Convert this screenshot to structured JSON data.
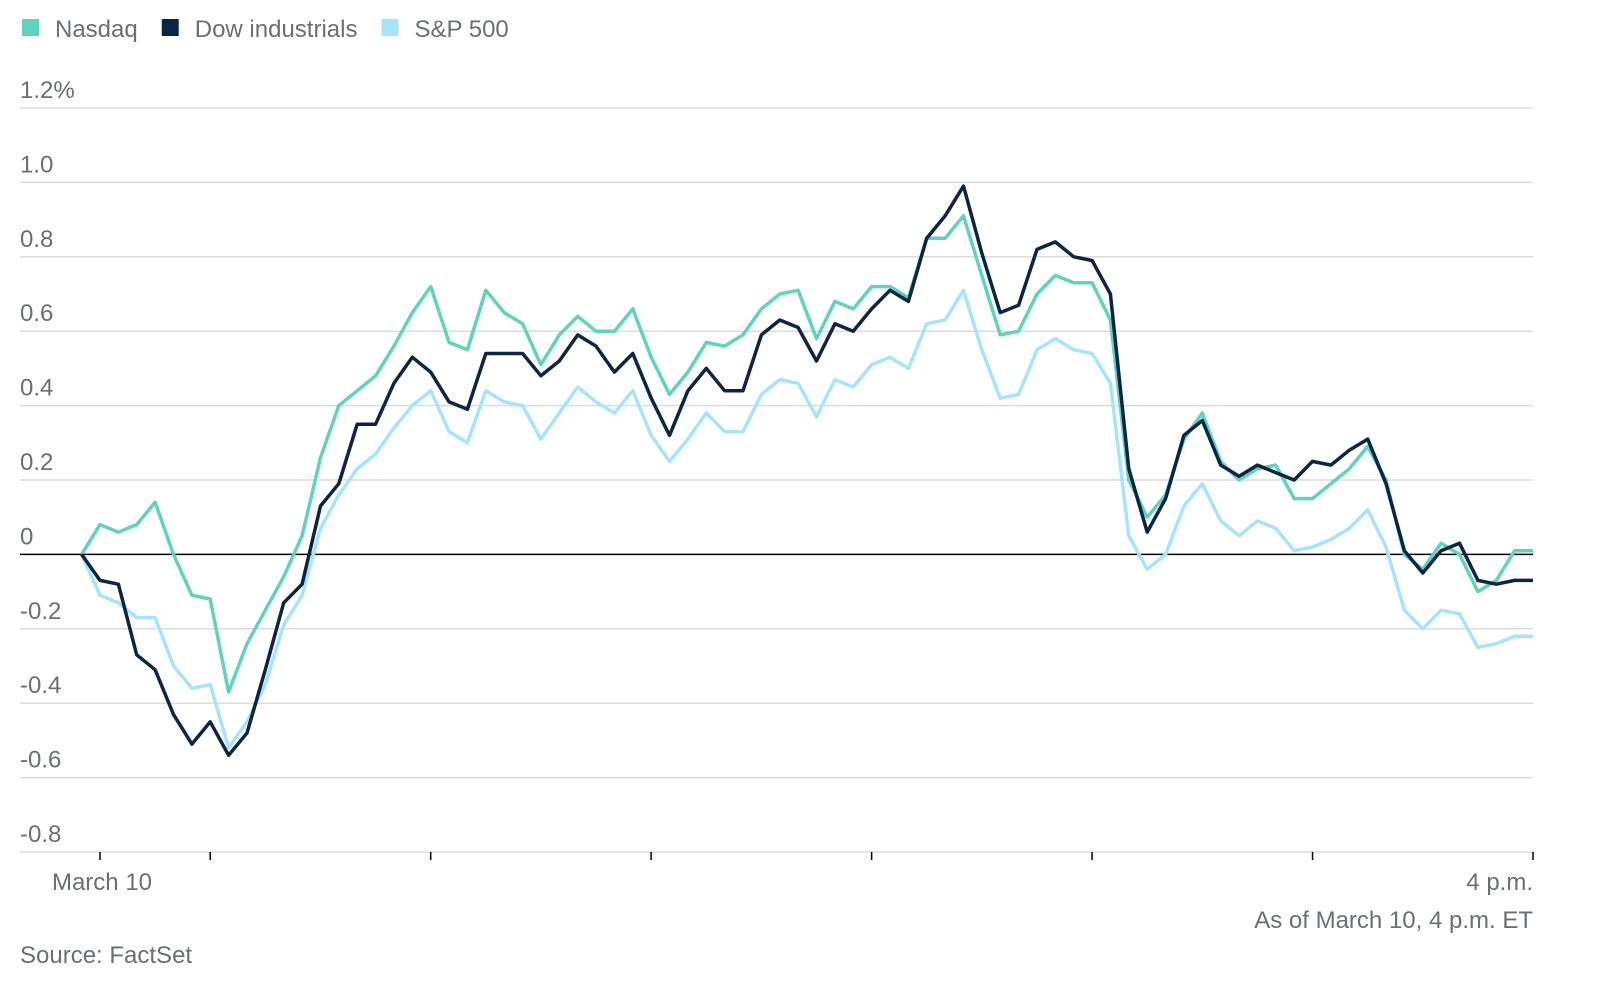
{
  "chart_data": {
    "type": "line",
    "x": [
      -5,
      0,
      5,
      10,
      15,
      20,
      25,
      30,
      35,
      40,
      45,
      50,
      55,
      60,
      65,
      70,
      75,
      80,
      85,
      90,
      95,
      100,
      105,
      110,
      115,
      120,
      125,
      130,
      135,
      140,
      145,
      150,
      155,
      160,
      165,
      170,
      175,
      180,
      185,
      190,
      195,
      200,
      205,
      210,
      215,
      220,
      225,
      230,
      235,
      240,
      245,
      250,
      255,
      260,
      265,
      270,
      275,
      280,
      285,
      290,
      295,
      300,
      305,
      310,
      315,
      320,
      325,
      330,
      335,
      340,
      345,
      350,
      355,
      360,
      365,
      370,
      375,
      380,
      385,
      390
    ],
    "series": [
      {
        "name": "Nasdaq",
        "color": "#5fd3bc",
        "values": [
          0,
          0.08,
          0.06,
          0.08,
          0.14,
          0.0,
          -0.11,
          -0.12,
          -0.37,
          -0.24,
          -0.15,
          -0.06,
          0.05,
          0.26,
          0.4,
          0.44,
          0.48,
          0.56,
          0.65,
          0.72,
          0.57,
          0.55,
          0.71,
          0.65,
          0.62,
          0.51,
          0.59,
          0.64,
          0.6,
          0.6,
          0.66,
          0.53,
          0.43,
          0.49,
          0.57,
          0.56,
          0.59,
          0.66,
          0.7,
          0.71,
          0.58,
          0.68,
          0.66,
          0.72,
          0.72,
          0.69,
          0.85,
          0.85,
          0.91,
          0.75,
          0.59,
          0.6,
          0.7,
          0.75,
          0.73,
          0.73,
          0.63,
          0.2,
          0.1,
          0.16,
          0.31,
          0.38,
          0.25,
          0.2,
          0.23,
          0.24,
          0.15,
          0.15,
          0.19,
          0.23,
          0.29,
          0.2,
          0.0,
          -0.04,
          0.03,
          0.0,
          -0.1,
          -0.07,
          0.01,
          0.01
        ]
      },
      {
        "name": "Dow industrials",
        "color": "#0d2545",
        "values": [
          0,
          -0.07,
          -0.08,
          -0.27,
          -0.31,
          -0.43,
          -0.51,
          -0.45,
          -0.54,
          -0.48,
          -0.31,
          -0.13,
          -0.08,
          0.13,
          0.19,
          0.35,
          0.35,
          0.46,
          0.53,
          0.49,
          0.41,
          0.39,
          0.54,
          0.54,
          0.54,
          0.48,
          0.52,
          0.59,
          0.56,
          0.49,
          0.54,
          0.42,
          0.32,
          0.44,
          0.5,
          0.44,
          0.44,
          0.59,
          0.63,
          0.61,
          0.52,
          0.62,
          0.6,
          0.66,
          0.71,
          0.68,
          0.85,
          0.91,
          0.99,
          0.81,
          0.65,
          0.67,
          0.82,
          0.84,
          0.8,
          0.79,
          0.7,
          0.23,
          0.06,
          0.15,
          0.32,
          0.36,
          0.24,
          0.21,
          0.24,
          0.22,
          0.2,
          0.25,
          0.24,
          0.28,
          0.31,
          0.19,
          0.01,
          -0.05,
          0.01,
          0.03,
          -0.07,
          -0.08,
          -0.07,
          -0.07
        ]
      },
      {
        "name": "S&P 500",
        "color": "#a6e4fb",
        "values": [
          0,
          -0.11,
          -0.13,
          -0.17,
          -0.17,
          -0.3,
          -0.36,
          -0.35,
          -0.52,
          -0.45,
          -0.35,
          -0.19,
          -0.11,
          0.07,
          0.16,
          0.23,
          0.27,
          0.34,
          0.4,
          0.44,
          0.33,
          0.3,
          0.44,
          0.41,
          0.4,
          0.31,
          0.38,
          0.45,
          0.41,
          0.38,
          0.44,
          0.32,
          0.25,
          0.31,
          0.38,
          0.33,
          0.33,
          0.43,
          0.47,
          0.46,
          0.37,
          0.47,
          0.45,
          0.51,
          0.53,
          0.5,
          0.62,
          0.63,
          0.71,
          0.55,
          0.42,
          0.43,
          0.55,
          0.58,
          0.55,
          0.54,
          0.46,
          0.05,
          -0.04,
          0.0,
          0.13,
          0.19,
          0.09,
          0.05,
          0.09,
          0.07,
          0.01,
          0.02,
          0.04,
          0.07,
          0.12,
          0.02,
          -0.15,
          -0.2,
          -0.15,
          -0.16,
          -0.25,
          -0.24,
          -0.22,
          -0.22
        ]
      }
    ],
    "xlim": [
      0,
      390
    ],
    "xticks": [
      {
        "value": 0,
        "label": "March 10"
      },
      {
        "value": 30,
        "label": null
      },
      {
        "value": 90,
        "label": null
      },
      {
        "value": 150,
        "label": null
      },
      {
        "value": 210,
        "label": null
      },
      {
        "value": 270,
        "label": null
      },
      {
        "value": 330,
        "label": null
      },
      {
        "value": 390,
        "label": "4 p.m."
      }
    ],
    "ylim": [
      -0.8,
      1.2
    ],
    "yticks": [
      -0.8,
      -0.6,
      -0.4,
      -0.2,
      0,
      0.2,
      0.4,
      0.6,
      0.8,
      {
        "value": 1,
        "label": "1.0"
      },
      {
        "value": 1.2,
        "label": "1.2%"
      }
    ],
    "grid": true,
    "note": "As of March 10, 4 p.m. ET",
    "source": "Source: FactSet"
  }
}
